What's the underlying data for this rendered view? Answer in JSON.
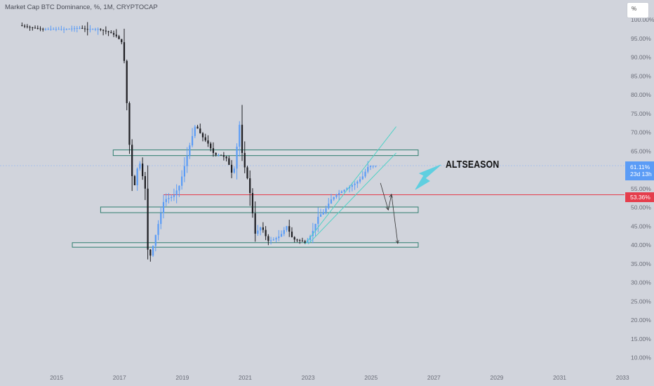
{
  "header": {
    "symbol": "Market Cap BTC Dominance, %, 1M, CRYPTOCAP"
  },
  "toolbar": {
    "scale_label": "%"
  },
  "price_tags": {
    "current_value": "61.11%",
    "countdown": "23d 13h",
    "level_value": "53.36%"
  },
  "annotation": {
    "text": "ALTSEASON"
  },
  "colors": {
    "background": "#d1d4dc",
    "up": "#5b9cf6",
    "down": "#1e1e22",
    "box": "#2e7d6e",
    "channel": "#4fd1c5",
    "support": "#e53d4c",
    "arrow_fill": "#5fcfe0",
    "current_line": "#8fb4f0"
  },
  "chart_data": {
    "type": "candlestick",
    "title": "Market Cap BTC Dominance, %, 1M, CRYPTOCAP",
    "y_axis": {
      "unit": "%",
      "range": [
        8.5,
        100.5
      ],
      "ticks": [
        "10.00%",
        "15.00%",
        "20.00%",
        "25.00%",
        "30.00%",
        "35.00%",
        "40.00%",
        "45.00%",
        "50.00%",
        "55.00%",
        "60.00%",
        "65.00%",
        "70.00%",
        "75.00%",
        "80.00%",
        "85.00%",
        "90.00%",
        "95.00%",
        "100.00%"
      ]
    },
    "x_axis": {
      "range": [
        2013.2,
        2034.0
      ],
      "ticks": [
        "2015",
        "2017",
        "2019",
        "2021",
        "2023",
        "2025",
        "2027",
        "2029",
        "2031",
        "2033"
      ]
    },
    "grid": false,
    "series_points": [
      [
        2013.9,
        98.5
      ],
      [
        2014.2,
        98
      ],
      [
        2014.6,
        97.5
      ],
      [
        2015.0,
        97.5
      ],
      [
        2015.4,
        97.5
      ],
      [
        2015.8,
        97.8
      ],
      [
        2016.0,
        97.5
      ],
      [
        2016.4,
        97.5
      ],
      [
        2016.8,
        96.5
      ],
      [
        2017.0,
        95.5
      ],
      [
        2017.2,
        93.5
      ],
      [
        2017.3,
        80
      ],
      [
        2017.45,
        60
      ],
      [
        2017.55,
        55
      ],
      [
        2017.7,
        63
      ],
      [
        2017.9,
        55
      ],
      [
        2018.0,
        35.5
      ],
      [
        2018.1,
        38
      ],
      [
        2018.3,
        45
      ],
      [
        2018.5,
        52
      ],
      [
        2018.8,
        53
      ],
      [
        2019.0,
        56
      ],
      [
        2019.3,
        66
      ],
      [
        2019.5,
        72
      ],
      [
        2019.7,
        69
      ],
      [
        2019.9,
        67
      ],
      [
        2020.1,
        64
      ],
      [
        2020.3,
        64
      ],
      [
        2020.5,
        63
      ],
      [
        2020.7,
        58
      ],
      [
        2020.9,
        72
      ],
      [
        2021.0,
        63
      ],
      [
        2021.2,
        56
      ],
      [
        2021.4,
        43
      ],
      [
        2021.6,
        45
      ],
      [
        2021.8,
        41
      ],
      [
        2022.0,
        41.5
      ],
      [
        2022.2,
        42.5
      ],
      [
        2022.4,
        45
      ],
      [
        2022.6,
        41.5
      ],
      [
        2022.9,
        41
      ],
      [
        2023.0,
        40.5
      ],
      [
        2023.2,
        43
      ],
      [
        2023.4,
        47.5
      ],
      [
        2023.6,
        49
      ],
      [
        2023.8,
        52
      ],
      [
        2024.0,
        53.5
      ],
      [
        2024.3,
        55
      ],
      [
        2024.6,
        56.5
      ],
      [
        2024.8,
        58
      ],
      [
        2025.0,
        61
      ],
      [
        2025.2,
        61.1
      ]
    ],
    "annotations": [
      "ALTSEASON"
    ],
    "current_value": 61.11,
    "support_level": 53.36,
    "boxes": [
      {
        "x_start": 2016.8,
        "x_end": 2026.5,
        "y_low": 63.8,
        "y_high": 65.3
      },
      {
        "x_start": 2016.4,
        "x_end": 2026.5,
        "y_low": 48.6,
        "y_high": 50.1
      },
      {
        "x_start": 2015.5,
        "x_end": 2026.5,
        "y_low": 39.4,
        "y_high": 40.6
      }
    ],
    "channel": [
      {
        "from": [
          2022.9,
          40.2
        ],
        "to": [
          2025.8,
          71.5
        ]
      },
      {
        "from": [
          2023.0,
          40.2
        ],
        "to": [
          2025.8,
          64.5
        ]
      }
    ],
    "projection_arrows": [
      {
        "from": [
          2025.3,
          56.5
        ],
        "to": [
          2025.55,
          49.3
        ]
      },
      {
        "from": [
          2025.55,
          49.3
        ],
        "to": [
          2025.65,
          53.5
        ]
      },
      {
        "from": [
          2025.65,
          53.5
        ],
        "to": [
          2025.85,
          40.4
        ]
      }
    ]
  }
}
